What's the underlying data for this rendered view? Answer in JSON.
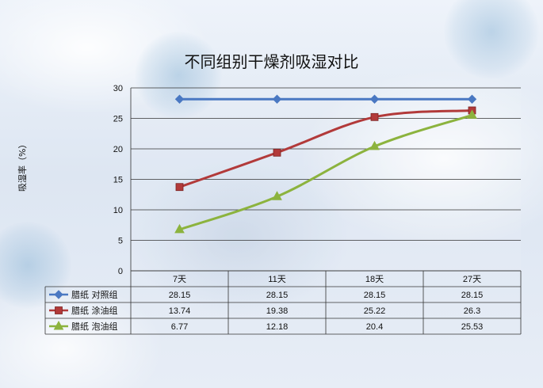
{
  "chart_data": {
    "type": "line",
    "title": "不同组别干燥剂吸湿对比",
    "ylabel": "吸湿率（%）",
    "xlabel": "",
    "categories": [
      "7天",
      "11天",
      "18天",
      "27天"
    ],
    "ylim": [
      0,
      30
    ],
    "yticks": [
      0,
      5,
      10,
      15,
      20,
      25,
      30
    ],
    "grid": true,
    "legend_position": "data-table",
    "series": [
      {
        "name": "腊纸 对照组",
        "color": "#4a78c2",
        "marker": "diamond",
        "values": [
          28.15,
          28.15,
          28.15,
          28.15
        ],
        "labels": [
          "28.15",
          "28.15",
          "28.15",
          "28.15"
        ]
      },
      {
        "name": "腊纸 涂油组",
        "color": "#b23a3a",
        "marker": "square",
        "values": [
          13.74,
          19.38,
          25.22,
          26.3
        ],
        "labels": [
          "13.74",
          "19.38",
          "25.22",
          "26.3"
        ]
      },
      {
        "name": "腊纸 泡油组",
        "color": "#8cb33e",
        "marker": "triangle",
        "values": [
          6.77,
          12.18,
          20.4,
          25.53
        ],
        "labels": [
          "6.77",
          "12.18",
          "20.4",
          "25.53"
        ]
      }
    ]
  }
}
